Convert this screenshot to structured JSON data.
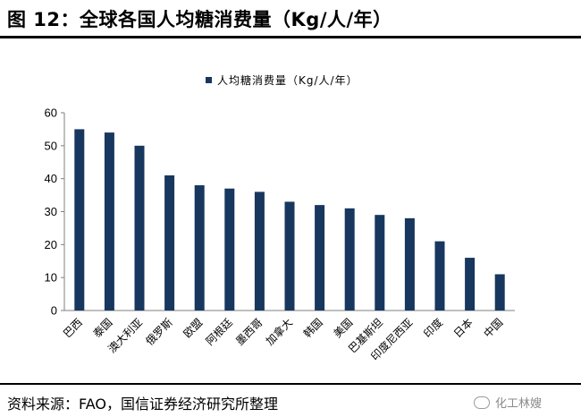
{
  "header": {
    "title": "图 12：全球各国人均糖消费量（Kg/人/年）"
  },
  "footer": {
    "source": "资料来源：FAO，国信证券经济研究所整理",
    "watermark": "化工林嫂"
  },
  "colors": {
    "bar": "#17375E",
    "axis": "#7f7f7f"
  },
  "chart_data": {
    "type": "bar",
    "title": "",
    "legend": [
      "人均糖消费量（Kg/人/年）"
    ],
    "legend_position": "top",
    "categories": [
      "巴西",
      "泰国",
      "澳大利亚",
      "俄罗斯",
      "欧盟",
      "阿根廷",
      "墨西哥",
      "加拿大",
      "韩国",
      "美国",
      "巴基斯坦",
      "印度尼西亚",
      "印度",
      "日本",
      "中国"
    ],
    "values": [
      55,
      54,
      50,
      41,
      38,
      37,
      36,
      33,
      32,
      31,
      29,
      28,
      21,
      16,
      11
    ],
    "ylim": [
      0,
      60
    ],
    "yticks": [
      0,
      10,
      20,
      30,
      40,
      50,
      60
    ],
    "xlabel": "",
    "ylabel": "",
    "grid": false
  }
}
